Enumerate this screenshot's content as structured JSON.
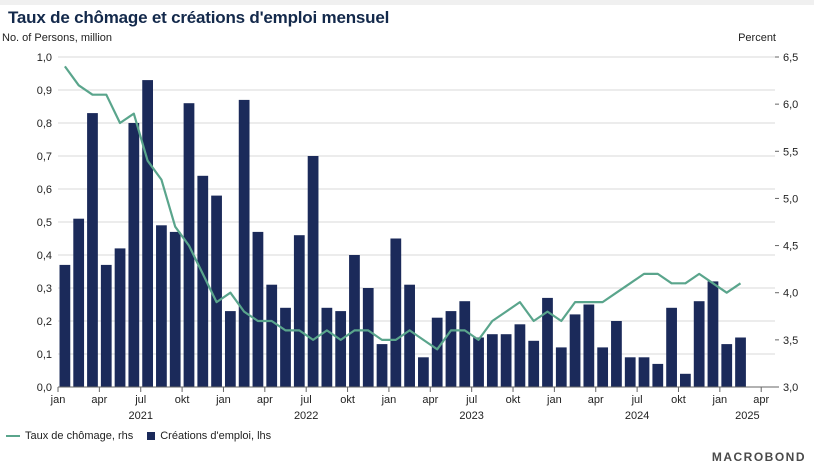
{
  "title": "Taux de chômage et créations d'emploi mensuel",
  "left_axis_unit": "No. of Persons, million",
  "right_axis_unit": "Percent",
  "logo_text": "MACROBOND",
  "colors": {
    "bars": "#1b2a5a",
    "line": "#5aa58c",
    "title": "#13294b"
  },
  "legend": {
    "line_label": "Taux de chômage, rhs",
    "bar_label": "Créations d'emploi, lhs"
  },
  "chart_data": {
    "type": "bar+line",
    "x": [
      "2021-01",
      "2021-02",
      "2021-03",
      "2021-04",
      "2021-05",
      "2021-06",
      "2021-07",
      "2021-08",
      "2021-09",
      "2021-10",
      "2021-11",
      "2021-12",
      "2022-01",
      "2022-02",
      "2022-03",
      "2022-04",
      "2022-05",
      "2022-06",
      "2022-07",
      "2022-08",
      "2022-09",
      "2022-10",
      "2022-11",
      "2022-12",
      "2023-01",
      "2023-02",
      "2023-03",
      "2023-04",
      "2023-05",
      "2023-06",
      "2023-07",
      "2023-08",
      "2023-09",
      "2023-10",
      "2023-11",
      "2023-12",
      "2024-01",
      "2024-02",
      "2024-03",
      "2024-04",
      "2024-05",
      "2024-06",
      "2024-07",
      "2024-08",
      "2024-09",
      "2024-10",
      "2024-11",
      "2024-12",
      "2025-01",
      "2025-02"
    ],
    "series": [
      {
        "name": "Créations d'emploi, lhs",
        "kind": "bar",
        "axis": "left",
        "values": [
          0.37,
          0.51,
          0.83,
          0.37,
          0.42,
          0.8,
          0.93,
          0.49,
          0.47,
          0.86,
          0.64,
          0.58,
          0.23,
          0.87,
          0.47,
          0.31,
          0.24,
          0.46,
          0.7,
          0.24,
          0.23,
          0.4,
          0.3,
          0.13,
          0.45,
          0.31,
          0.09,
          0.21,
          0.23,
          0.26,
          0.15,
          0.16,
          0.16,
          0.19,
          0.14,
          0.27,
          0.12,
          0.22,
          0.25,
          0.12,
          0.2,
          0.09,
          0.09,
          0.07,
          0.24,
          0.04,
          0.26,
          0.32,
          0.13,
          0.15
        ]
      },
      {
        "name": "Taux de chômage, rhs",
        "kind": "line",
        "axis": "right",
        "values": [
          6.4,
          6.2,
          6.1,
          6.1,
          5.8,
          5.9,
          5.4,
          5.2,
          4.7,
          4.5,
          4.2,
          3.9,
          4.0,
          3.8,
          3.7,
          3.7,
          3.6,
          3.6,
          3.5,
          3.6,
          3.5,
          3.6,
          3.6,
          3.5,
          3.5,
          3.6,
          3.5,
          3.4,
          3.6,
          3.6,
          3.5,
          3.7,
          3.8,
          3.9,
          3.7,
          3.8,
          3.7,
          3.9,
          3.9,
          3.9,
          4.0,
          4.1,
          4.2,
          4.2,
          4.1,
          4.1,
          4.2,
          4.1,
          4.0,
          4.1
        ]
      }
    ],
    "left_axis": {
      "min": 0,
      "max": 1.0,
      "ticks": [
        "0,0",
        "0,1",
        "0,2",
        "0,3",
        "0,4",
        "0,5",
        "0,6",
        "0,7",
        "0,8",
        "0,9",
        "1,0"
      ]
    },
    "right_axis": {
      "min": 3.0,
      "max": 6.5,
      "ticks": [
        "3,0",
        "3,5",
        "4,0",
        "4,5",
        "5,0",
        "5,5",
        "6,0",
        "6,5"
      ]
    },
    "x_tick_labels": [
      {
        "month": "2021-01",
        "label": "jan"
      },
      {
        "month": "2021-04",
        "label": "apr"
      },
      {
        "month": "2021-07",
        "label": "jul"
      },
      {
        "month": "2021-10",
        "label": "okt"
      },
      {
        "month": "2022-01",
        "label": "jan"
      },
      {
        "month": "2022-04",
        "label": "apr"
      },
      {
        "month": "2022-07",
        "label": "jul"
      },
      {
        "month": "2022-10",
        "label": "okt"
      },
      {
        "month": "2023-01",
        "label": "jan"
      },
      {
        "month": "2023-04",
        "label": "apr"
      },
      {
        "month": "2023-07",
        "label": "jul"
      },
      {
        "month": "2023-10",
        "label": "okt"
      },
      {
        "month": "2024-01",
        "label": "jan"
      },
      {
        "month": "2024-04",
        "label": "apr"
      },
      {
        "month": "2024-07",
        "label": "jul"
      },
      {
        "month": "2024-10",
        "label": "okt"
      },
      {
        "month": "2025-01",
        "label": "jan"
      },
      {
        "month": "2025-04",
        "label": "apr"
      }
    ],
    "year_labels": [
      {
        "year": "2021",
        "center_month": "2021-07"
      },
      {
        "year": "2022",
        "center_month": "2022-07"
      },
      {
        "year": "2023",
        "center_month": "2023-07"
      },
      {
        "year": "2024",
        "center_month": "2024-07"
      },
      {
        "year": "2025",
        "center_month": "2025-03"
      }
    ],
    "grid": "horizontal",
    "legend_position": "bottom-left"
  }
}
